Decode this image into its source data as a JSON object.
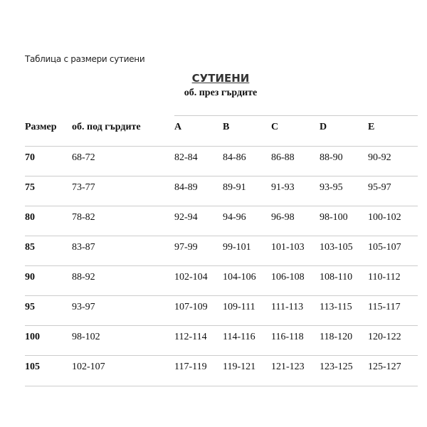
{
  "caption": "Таблица с размери сутиени",
  "title": "СУТИЕНИ",
  "subtitle": "об. през гърдите",
  "table": {
    "headers": [
      "Размер",
      "об. под гърдите",
      "A",
      "B",
      "C",
      "D",
      "E"
    ],
    "rows": [
      [
        "70",
        "68-72",
        "82-84",
        "84-86",
        "86-88",
        "88-90",
        "90-92"
      ],
      [
        "75",
        "73-77",
        "84-89",
        "89-91",
        "91-93",
        "93-95",
        "95-97"
      ],
      [
        "80",
        "78-82",
        "92-94",
        "94-96",
        "96-98",
        "98-100",
        "100-102"
      ],
      [
        "85",
        "83-87",
        "97-99",
        "99-101",
        "101-103",
        "103-105",
        "105-107"
      ],
      [
        "90",
        "88-92",
        "102-104",
        "104-106",
        "106-108",
        "108-110",
        "110-112"
      ],
      [
        "95",
        "93-97",
        "107-109",
        "109-111",
        "111-113",
        "113-115",
        "115-117"
      ],
      [
        "100",
        "98-102",
        "112-114",
        "114-116",
        "116-118",
        "118-120",
        "120-122"
      ],
      [
        "105",
        "102-107",
        "117-119",
        "119-121",
        "121-123",
        "123-125",
        "125-127"
      ]
    ]
  }
}
